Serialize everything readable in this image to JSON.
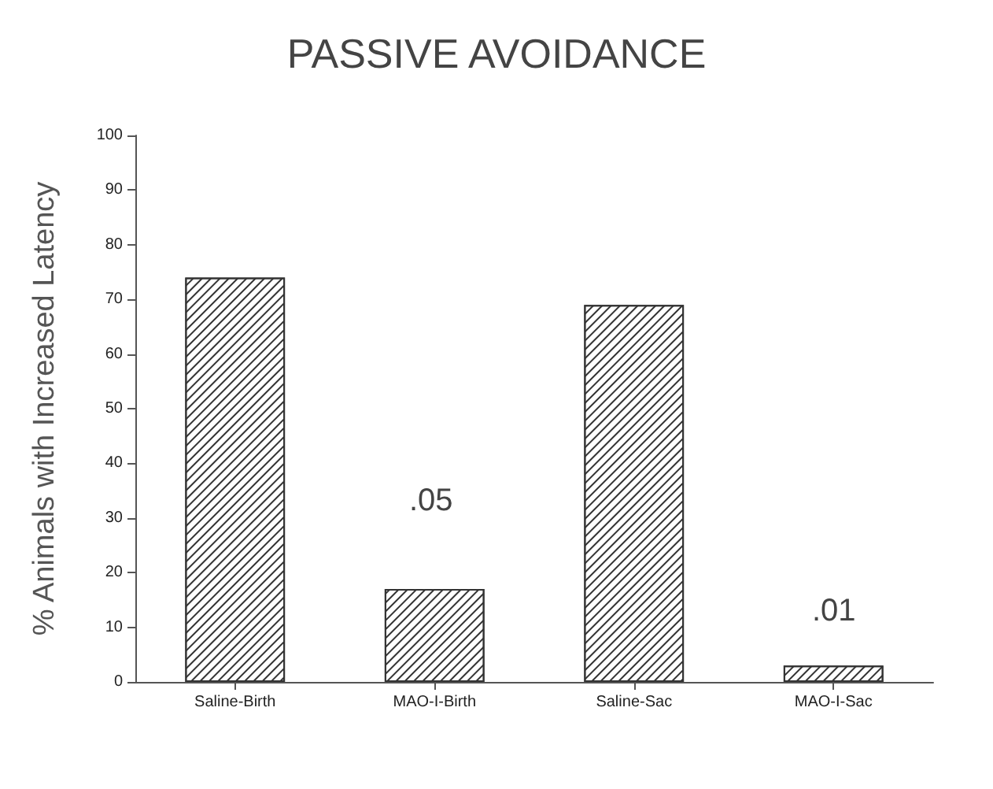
{
  "chart_data": {
    "type": "bar",
    "title": "PASSIVE AVOIDANCE",
    "ylabel": "% Animals with Increased Latency",
    "categories": [
      "Saline-Birth",
      "MAO-I-Birth",
      "Saline-Sac",
      "MAO-I-Sac"
    ],
    "values": [
      74,
      17,
      69,
      3
    ],
    "color": "#333333",
    "ylim": [
      0,
      100
    ],
    "yticks": [
      0,
      10,
      20,
      30,
      40,
      50,
      60,
      70,
      80,
      90,
      100
    ],
    "grid": false,
    "annotations": [
      ".05",
      ".01"
    ]
  }
}
